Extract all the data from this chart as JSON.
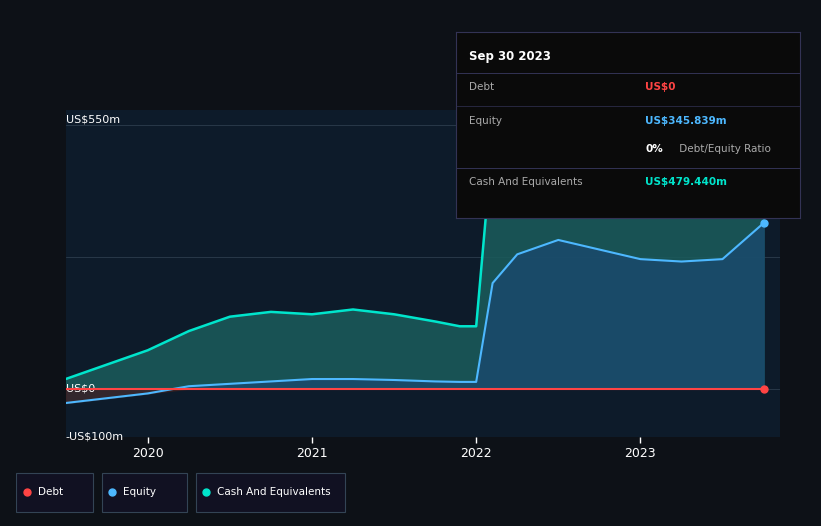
{
  "bg_color": "#0d1117",
  "plot_bg_color": "#0d1b2a",
  "ylim": [
    -100,
    580
  ],
  "xticks": [
    2020,
    2021,
    2022,
    2023
  ],
  "ylabel_top": "US$550m",
  "ylabel_mid": "US$0",
  "ylabel_bot": "-US$100m",
  "info_box": {
    "date": "Sep 30 2023",
    "debt_label": "Debt",
    "debt_value": "US$0",
    "debt_color": "#ff4444",
    "equity_label": "Equity",
    "equity_value": "US$345.839m",
    "equity_color": "#4db8ff",
    "ratio_bold": "0%",
    "ratio_rest": " Debt/Equity Ratio",
    "cash_label": "Cash And Equivalents",
    "cash_value": "US$479.440m",
    "cash_color": "#00e5cc"
  },
  "legend": [
    {
      "label": "Debt",
      "color": "#ff4444"
    },
    {
      "label": "Equity",
      "color": "#4db8ff"
    },
    {
      "label": "Cash And Equivalents",
      "color": "#00e5cc"
    }
  ],
  "x": [
    2019.5,
    2019.75,
    2020.0,
    2020.25,
    2020.5,
    2020.75,
    2021.0,
    2021.25,
    2021.5,
    2021.75,
    2021.9,
    2022.0,
    2022.1,
    2022.25,
    2022.5,
    2022.75,
    2023.0,
    2023.25,
    2023.5,
    2023.75
  ],
  "debt": [
    0,
    0,
    0,
    0,
    0,
    0,
    0,
    0,
    0,
    0,
    0,
    0,
    0,
    0,
    0,
    0,
    0,
    0,
    0,
    0
  ],
  "equity": [
    -30,
    -20,
    -10,
    5,
    10,
    15,
    20,
    20,
    18,
    15,
    14,
    14,
    220,
    280,
    310,
    290,
    270,
    265,
    270,
    345
  ],
  "cash": [
    20,
    50,
    80,
    120,
    150,
    160,
    155,
    165,
    155,
    140,
    130,
    130,
    520,
    510,
    490,
    470,
    460,
    430,
    450,
    479
  ],
  "grid_lines": [
    -100,
    0,
    275,
    550
  ],
  "fill_cash_color": "#1a5c5c",
  "fill_equity_color": "#1a4a6b",
  "fill_neg_equity_color": "#3a2020",
  "line_cash_color": "#00e5cc",
  "line_equity_color": "#4db8ff",
  "line_debt_color": "#ff4444"
}
